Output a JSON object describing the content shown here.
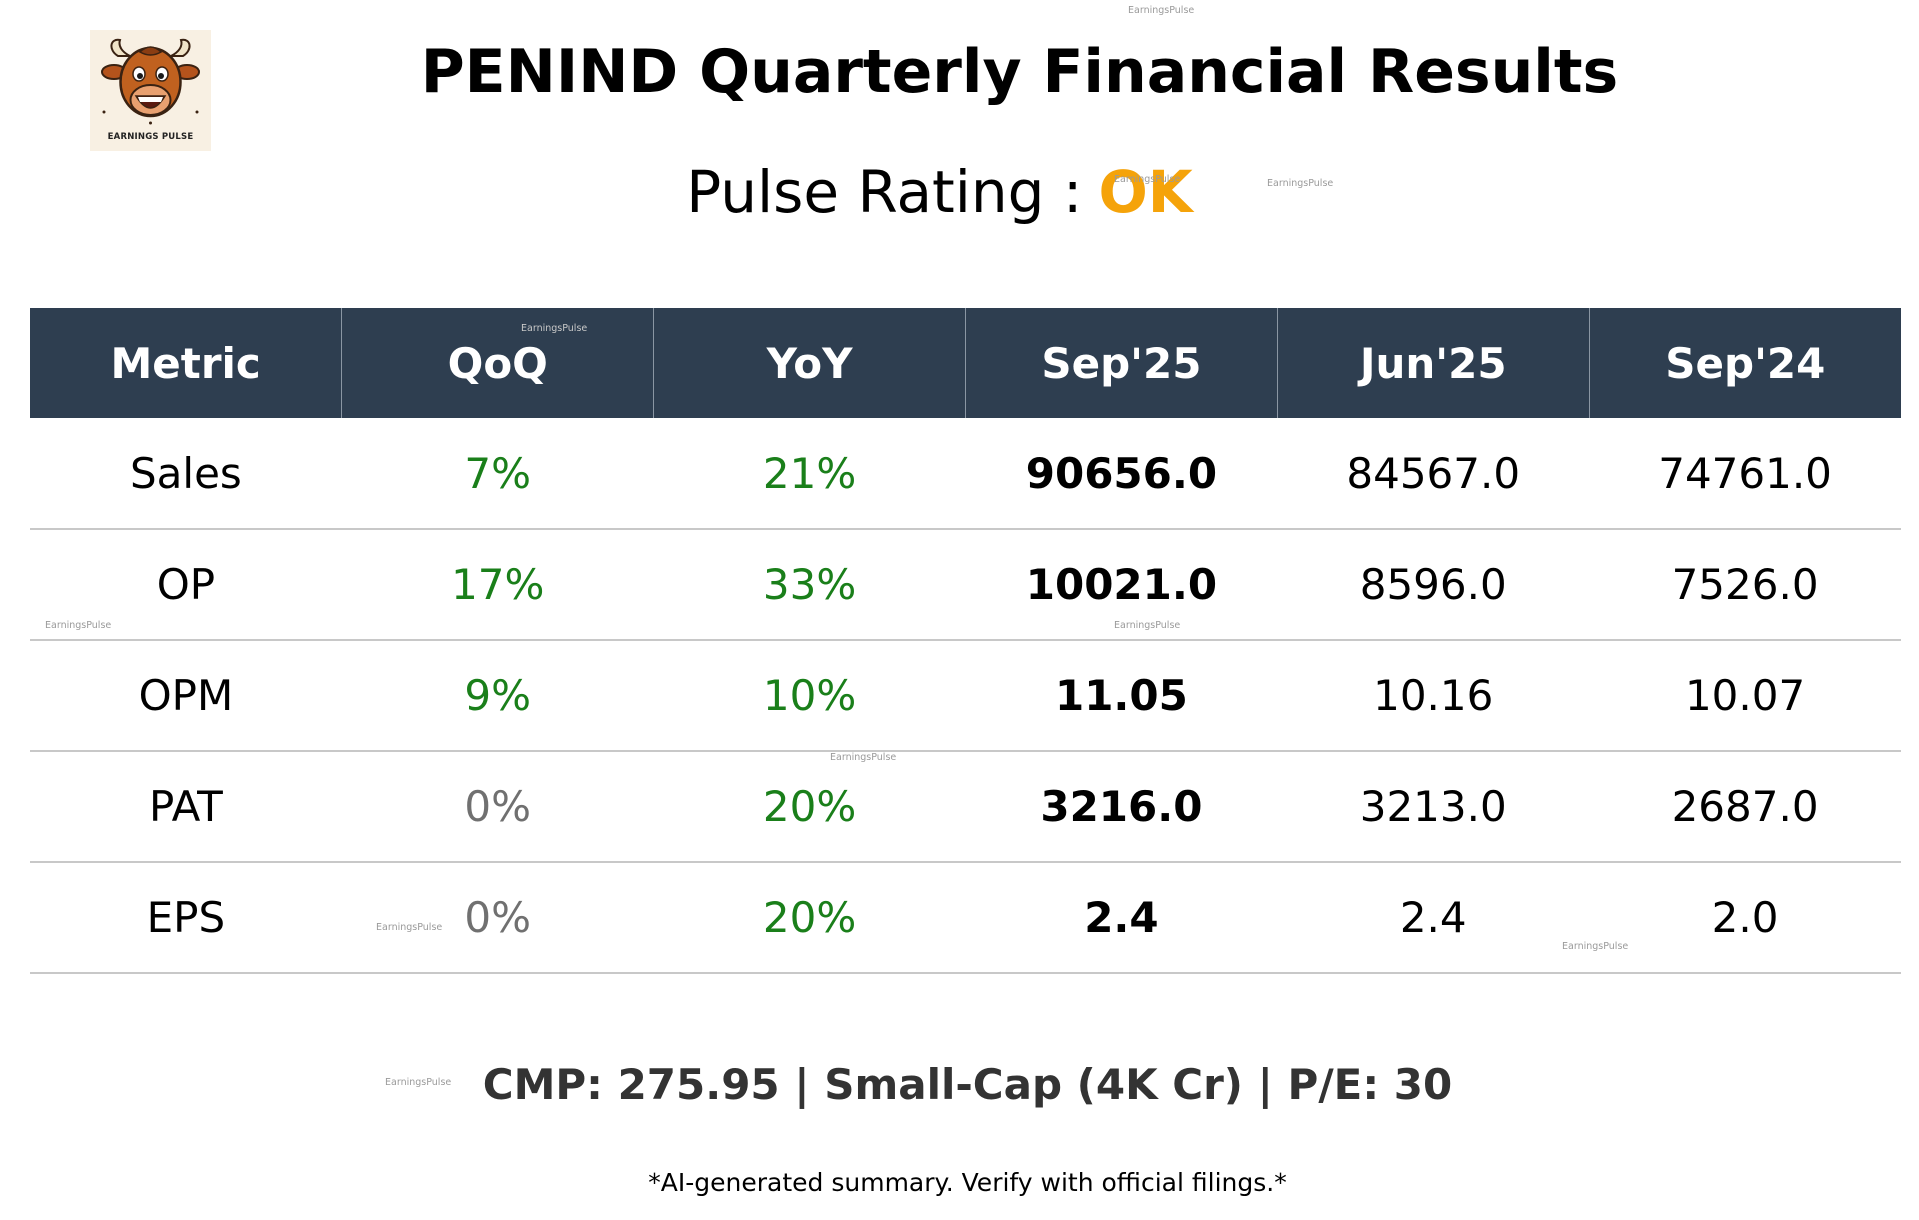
{
  "logo": {
    "text": "EARNINGS PULSE"
  },
  "title": "PENIND Quarterly Financial Results",
  "rating": {
    "label": "Pulse Rating :",
    "value": "OK",
    "color": "#f5a30a"
  },
  "watermark_text": "EarningsPulse",
  "colors": {
    "header_bg": "#2e3e50",
    "positive": "#1a7f1a",
    "neutral": "#707070",
    "divider": "#c8c8c8"
  },
  "table": {
    "headers": [
      "Metric",
      "QoQ",
      "YoY",
      "Sep'25",
      "Jun'25",
      "Sep'24"
    ],
    "rows": [
      {
        "metric": "Sales",
        "qoq": "7%",
        "qoq_status": "positive",
        "yoy": "21%",
        "yoy_status": "positive",
        "sep25": "90656.0",
        "jun25": "84567.0",
        "sep24": "74761.0"
      },
      {
        "metric": "OP",
        "qoq": "17%",
        "qoq_status": "positive",
        "yoy": "33%",
        "yoy_status": "positive",
        "sep25": "10021.0",
        "jun25": "8596.0",
        "sep24": "7526.0"
      },
      {
        "metric": "OPM",
        "qoq": "9%",
        "qoq_status": "positive",
        "yoy": "10%",
        "yoy_status": "positive",
        "sep25": "11.05",
        "jun25": "10.16",
        "sep24": "10.07"
      },
      {
        "metric": "PAT",
        "qoq": "0%",
        "qoq_status": "neutral",
        "yoy": "20%",
        "yoy_status": "positive",
        "sep25": "3216.0",
        "jun25": "3213.0",
        "sep24": "2687.0"
      },
      {
        "metric": "EPS",
        "qoq": "0%",
        "qoq_status": "neutral",
        "yoy": "20%",
        "yoy_status": "positive",
        "sep25": "2.4",
        "jun25": "2.4",
        "sep24": "2.0"
      }
    ]
  },
  "footer": "CMP: 275.95 | Small-Cap (4K Cr) | P/E: 30",
  "disclaimer": "*AI-generated summary. Verify with official filings.*"
}
